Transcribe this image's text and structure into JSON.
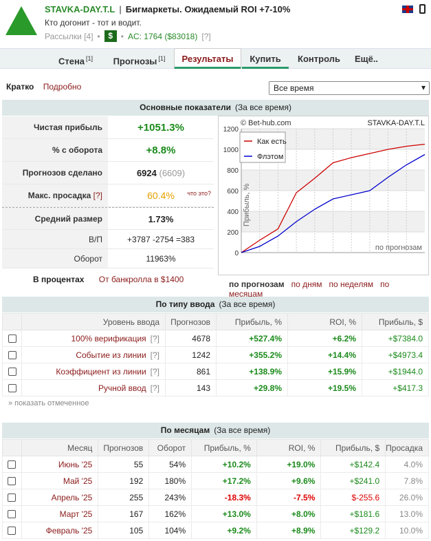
{
  "header": {
    "username": "STAVKA-DAY.T.L",
    "separator": "|",
    "subtitle": "Бигмаркеты. Ожидаемый ROI +7-10%",
    "motto": "Кто догонит - тот и водит.",
    "mailings": "Рассылки [4]",
    "dot": "•",
    "dollar_badge": "$",
    "ac": "AC: 1764 ($83018)",
    "ac_help": "[?]",
    "colors": {
      "brand": "#2a8a2a",
      "link": "#8b1a1a"
    }
  },
  "nav": {
    "tabs": [
      {
        "label": "Стена",
        "sup": "[1]"
      },
      {
        "label": "Прогнозы",
        "sup": "[1]"
      },
      {
        "label": "Результаты",
        "sup": ""
      },
      {
        "label": "Купить",
        "sup": ""
      },
      {
        "label": "Контроль",
        "sup": ""
      },
      {
        "label": "Ещё..",
        "sup": ""
      }
    ],
    "active": "Результаты"
  },
  "view": {
    "short": "Кратко",
    "detailed": "Подробно",
    "period": "Все время"
  },
  "main_stats": {
    "title": "Основные показатели",
    "subtitle": "(За все время)",
    "rows": [
      {
        "label": "Чистая прибыль",
        "value": "+1051.3%"
      },
      {
        "label": "% с оборота",
        "value": "+8.8%"
      },
      {
        "label": "Прогнозов сделано",
        "value": "6924",
        "extra": "(6609)"
      },
      {
        "label": "Макс. просадка",
        "help": "[?]",
        "value": "60.4%",
        "note": "что это?"
      },
      {
        "label": "Средний размер",
        "value": "1.73%"
      },
      {
        "label": "В/П",
        "value": "+3787 -2754 =383"
      },
      {
        "label": "Оборот",
        "value": "11963%"
      }
    ],
    "percent_label": "В процентах",
    "bankroll_label": "От банкролла в $1400"
  },
  "chart_data": {
    "type": "line",
    "title": "STAVKA-DAY.T.L",
    "watermark": "© Bet-hub.com",
    "ylabel": "Прибыль, %",
    "xlabel": "по прогнозам",
    "ylim": [
      0,
      1200
    ],
    "yticks": [
      0,
      200,
      400,
      600,
      800,
      1000,
      1200
    ],
    "series": [
      {
        "name": "Как есть",
        "color": "#cc0000",
        "x": [
          0,
          10,
          20,
          30,
          40,
          50,
          60,
          70,
          80,
          90,
          100
        ],
        "y": [
          0,
          120,
          230,
          580,
          720,
          870,
          920,
          960,
          1000,
          1030,
          1050
        ]
      },
      {
        "name": "Флэтом",
        "color": "#0000cc",
        "x": [
          0,
          10,
          20,
          30,
          40,
          50,
          60,
          70,
          80,
          90,
          100
        ],
        "y": [
          0,
          60,
          160,
          300,
          420,
          520,
          560,
          600,
          730,
          850,
          950
        ]
      }
    ],
    "legend": "top-left",
    "grid": true
  },
  "chart_links": {
    "active": "по прогнозам",
    "items": [
      "по дням",
      "по неделям",
      "по месяцам"
    ]
  },
  "by_type": {
    "title": "По типу ввода",
    "subtitle": "(За все время)",
    "headers": [
      "Уровень ввода",
      "Прогнозов",
      "Прибыль, %",
      "ROI, %",
      "Прибыль, $"
    ],
    "rows": [
      {
        "label": "100% верификация",
        "help": "[?]",
        "count": "4678",
        "profit": "+527.4%",
        "roi": "+6.2%",
        "money": "+$7384.0"
      },
      {
        "label": "Событие из линии",
        "help": "[?]",
        "count": "1242",
        "profit": "+355.2%",
        "roi": "+14.4%",
        "money": "+$4973.4"
      },
      {
        "label": "Коэффициент из линии",
        "help": "[?]",
        "count": "861",
        "profit": "+138.9%",
        "roi": "+15.9%",
        "money": "+$1944.0"
      },
      {
        "label": "Ручной ввод",
        "help": "[?]",
        "count": "143",
        "profit": "+29.8%",
        "roi": "+19.5%",
        "money": "+$417.3"
      }
    ],
    "show_marked": "» показать отмеченное"
  },
  "by_month": {
    "title": "По месяцам",
    "subtitle": "(За все время)",
    "headers": [
      "Месяц",
      "Прогнозов",
      "Оборот",
      "Прибыль, %",
      "ROI, %",
      "Прибыль, $",
      "Просадка"
    ],
    "rows": [
      {
        "month": "Июнь '25",
        "count": "55",
        "turnover": "54%",
        "profit": "+10.2%",
        "roi": "+19.0%",
        "money": "+$142.4",
        "dd": "4.0%"
      },
      {
        "month": "Май '25",
        "count": "192",
        "turnover": "180%",
        "profit": "+17.2%",
        "roi": "+9.6%",
        "money": "+$241.0",
        "dd": "7.8%"
      },
      {
        "month": "Апрель '25",
        "count": "255",
        "turnover": "243%",
        "profit": "-18.3%",
        "roi": "-7.5%",
        "money": "$-255.6",
        "dd": "26.0%"
      },
      {
        "month": "Март '25",
        "count": "167",
        "turnover": "162%",
        "profit": "+13.0%",
        "roi": "+8.0%",
        "money": "+$181.6",
        "dd": "13.0%"
      },
      {
        "month": "Февраль '25",
        "count": "105",
        "turnover": "104%",
        "profit": "+9.2%",
        "roi": "+8.9%",
        "money": "+$129.2",
        "dd": "10.0%"
      }
    ]
  }
}
